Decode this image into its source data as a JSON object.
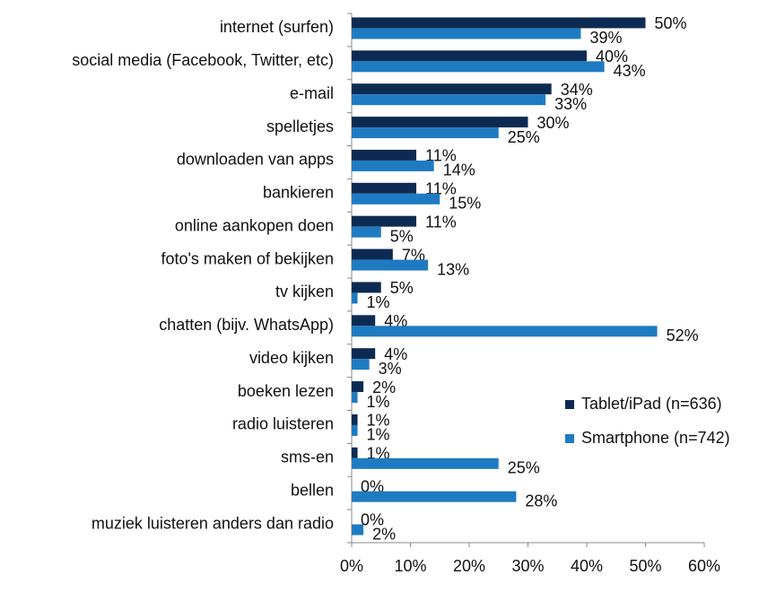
{
  "chart_data": {
    "type": "bar",
    "orientation": "horizontal",
    "categories": [
      "internet (surfen)",
      "social media (Facebook, Twitter, etc)",
      "e-mail",
      "spelletjes",
      "downloaden van apps",
      "bankieren",
      "online aankopen doen",
      "foto's maken of bekijken",
      "tv kijken",
      "chatten (bijv. WhatsApp)",
      "video kijken",
      "boeken lezen",
      "radio luisteren",
      "sms-en",
      "bellen",
      "muziek luisteren anders dan radio"
    ],
    "series": [
      {
        "name": "Tablet/iPad (n=636)",
        "color": "#0d2b52",
        "values": [
          50,
          40,
          34,
          30,
          11,
          11,
          11,
          7,
          5,
          4,
          4,
          2,
          1,
          1,
          0,
          0
        ],
        "value_labels": [
          "50%",
          "40%",
          "34%",
          "30%",
          "11%",
          "11%",
          "11%",
          "7%",
          "5%",
          "4%",
          "4%",
          "2%",
          "1%",
          "1%",
          "0%",
          "0%"
        ]
      },
      {
        "name": "Smartphone (n=742)",
        "color": "#1f7bc1",
        "values": [
          39,
          43,
          33,
          25,
          14,
          15,
          5,
          13,
          1,
          52,
          3,
          1,
          1,
          25,
          28,
          2
        ],
        "value_labels": [
          "39%",
          "43%",
          "33%",
          "25%",
          "14%",
          "15%",
          "5%",
          "13%",
          "1%",
          "52%",
          "3%",
          "1%",
          "1%",
          "25%",
          "28%",
          "2%"
        ]
      }
    ],
    "xlim": [
      0,
      60
    ],
    "xticks": [
      {
        "value": 0,
        "label": "0%"
      },
      {
        "value": 10,
        "label": "10%"
      },
      {
        "value": 20,
        "label": "20%"
      },
      {
        "value": 30,
        "label": "30%"
      },
      {
        "value": 40,
        "label": "40%"
      },
      {
        "value": 50,
        "label": "50%"
      },
      {
        "value": 60,
        "label": "60%"
      }
    ],
    "grid": false,
    "legend_position": "lower right"
  }
}
